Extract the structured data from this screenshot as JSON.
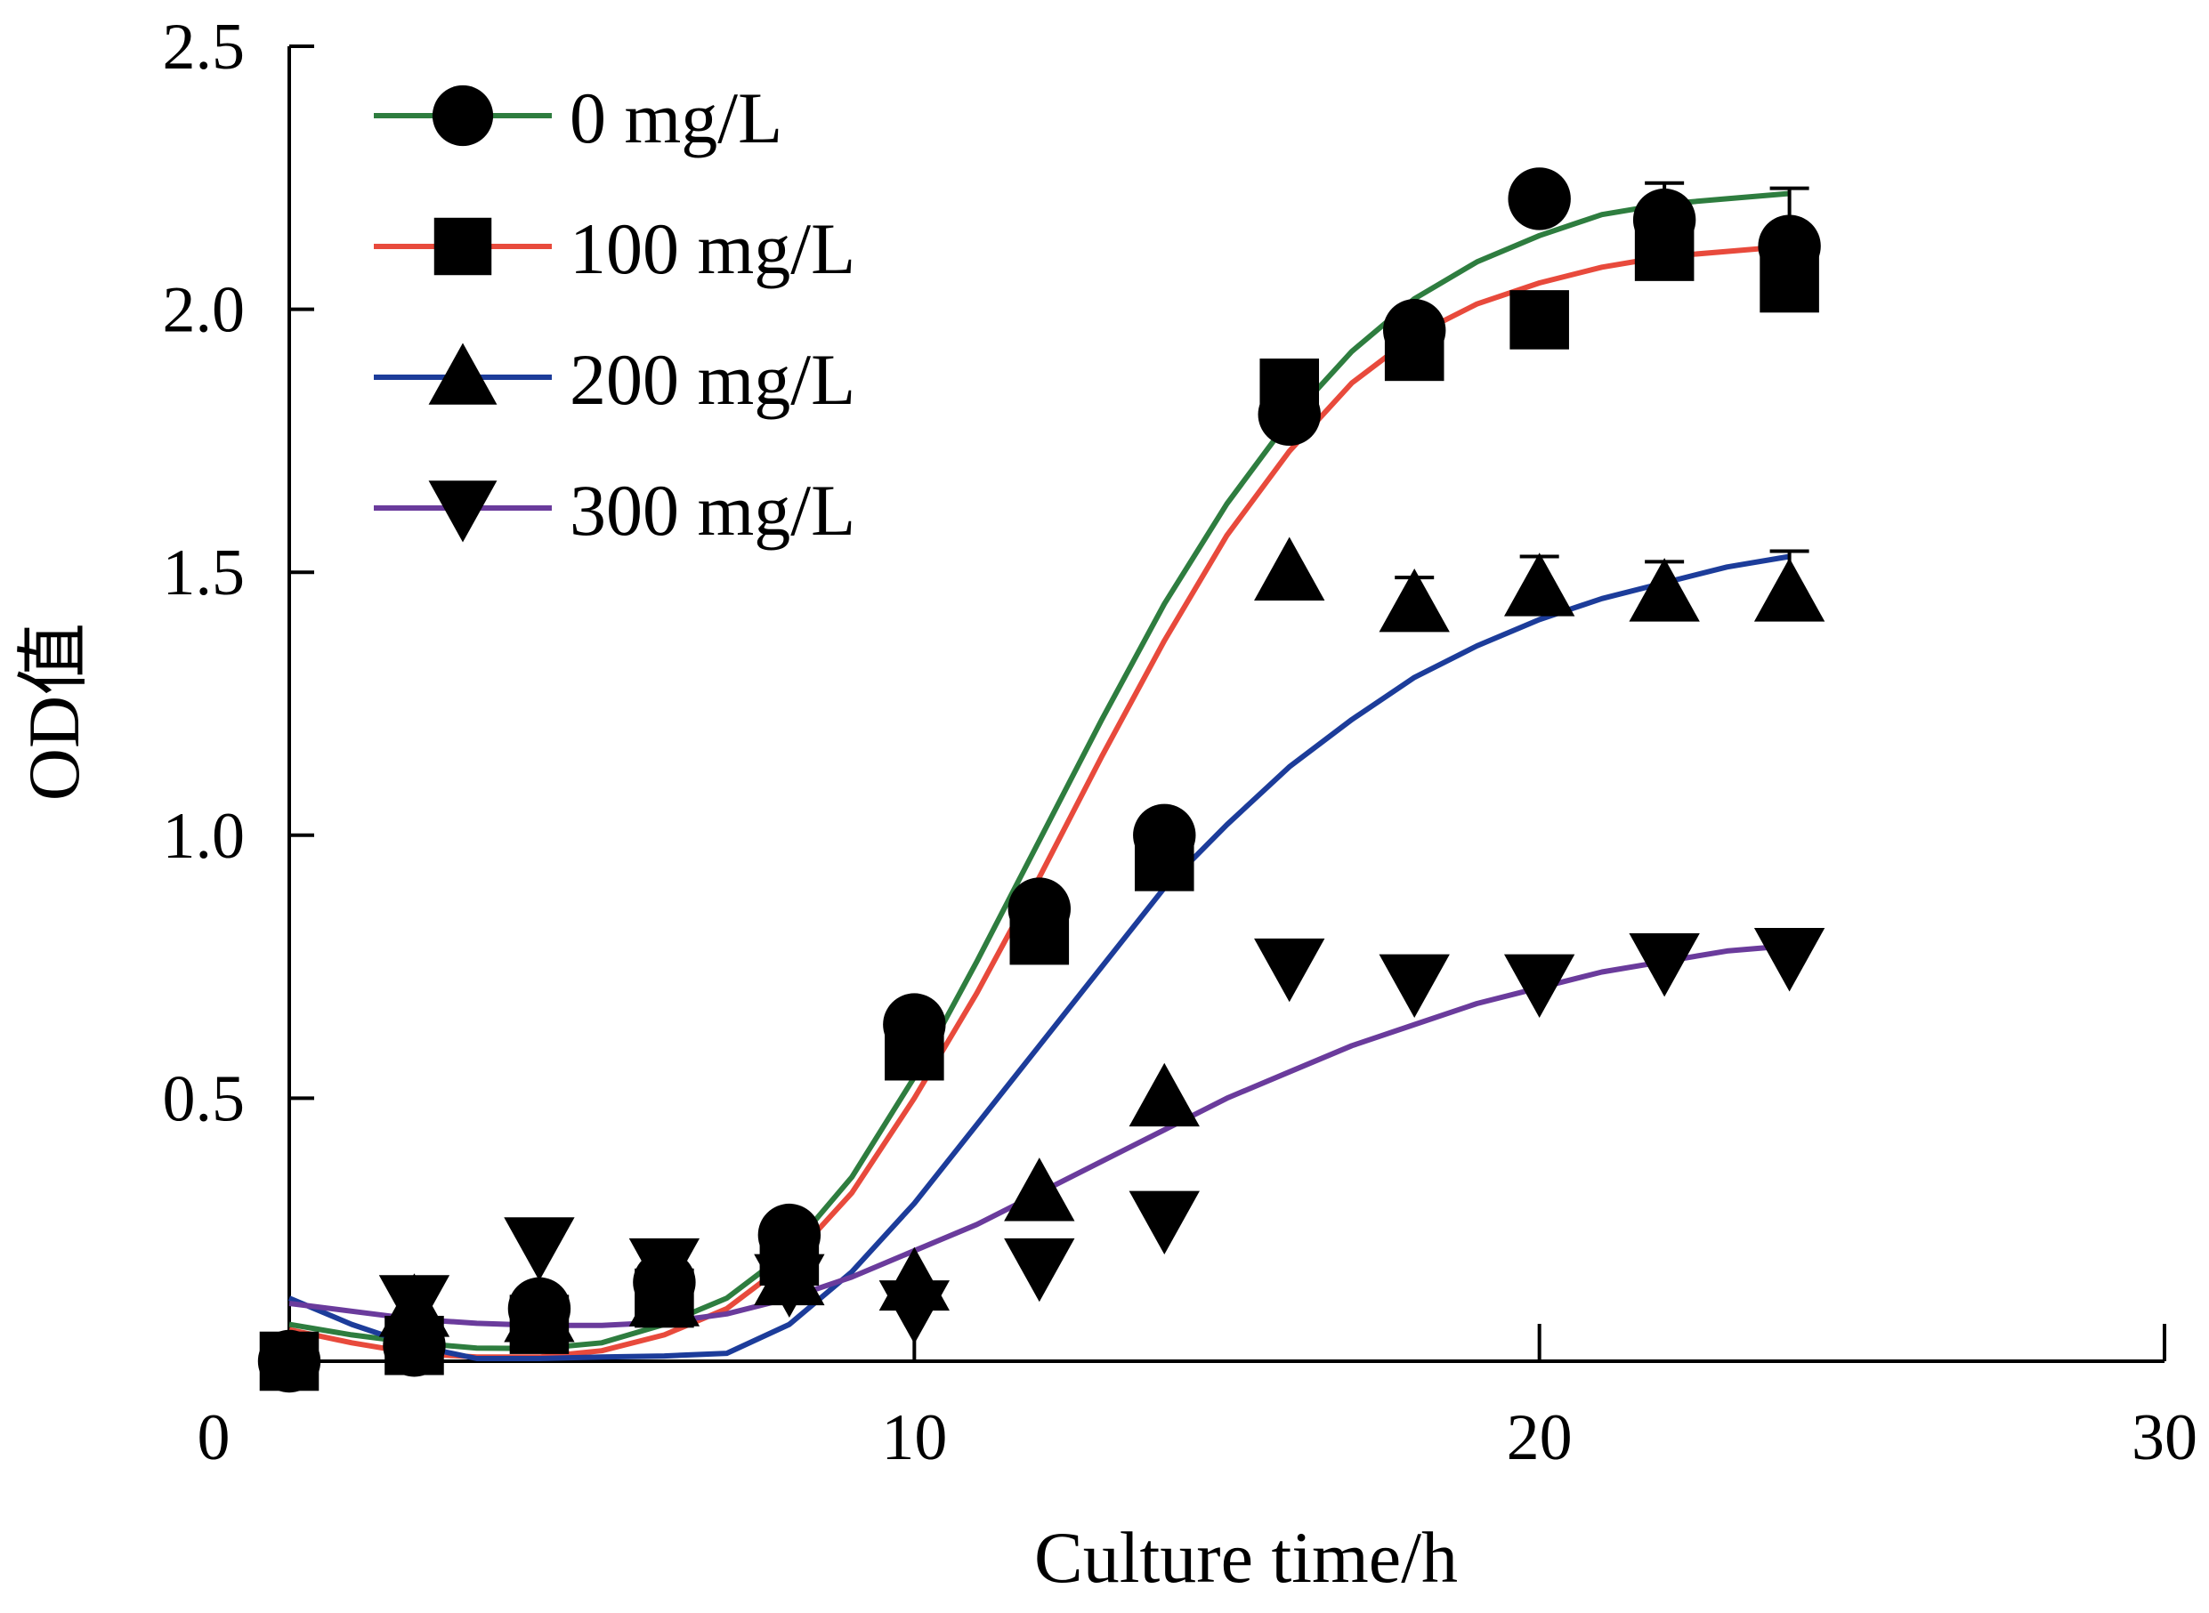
{
  "chart_data": {
    "type": "line",
    "xlabel": "Culture time/h",
    "ylabel": "OD值",
    "xlim": [
      0,
      30
    ],
    "ylim": [
      0,
      2.5
    ],
    "xticks": [
      "0",
      "10",
      "20",
      "30"
    ],
    "yticks": [
      "0.5",
      "1.0",
      "1.5",
      "2.0",
      "2.5"
    ],
    "grid": false,
    "legend_position": "top-left",
    "series": [
      {
        "name": "0 mg/L",
        "marker": "circle",
        "color": "#2e7d3f",
        "points": [
          [
            0,
            0
          ],
          [
            2,
            0.03
          ],
          [
            4,
            0.1
          ],
          [
            6,
            0.15
          ],
          [
            8,
            0.24
          ],
          [
            10,
            0.64
          ],
          [
            12,
            0.86
          ],
          [
            14,
            1.0
          ],
          [
            16,
            1.8
          ],
          [
            18,
            1.96
          ],
          [
            20,
            2.21
          ],
          [
            22,
            2.17
          ],
          [
            24,
            2.12
          ]
        ],
        "error": [
          0,
          0,
          0,
          0,
          0,
          0,
          0,
          0,
          0.04,
          0,
          0.04,
          0.07,
          0.11
        ],
        "fit": [
          [
            0,
            0.07
          ],
          [
            1,
            0.05
          ],
          [
            2,
            0.035
          ],
          [
            3,
            0.025
          ],
          [
            4,
            0.024
          ],
          [
            5,
            0.035
          ],
          [
            6,
            0.07
          ],
          [
            7,
            0.12
          ],
          [
            8,
            0.21
          ],
          [
            9,
            0.35
          ],
          [
            10,
            0.54
          ],
          [
            11,
            0.76
          ],
          [
            12,
            0.99
          ],
          [
            13,
            1.22
          ],
          [
            14,
            1.44
          ],
          [
            15,
            1.63
          ],
          [
            16,
            1.79
          ],
          [
            17,
            1.92
          ],
          [
            18,
            2.02
          ],
          [
            19,
            2.09
          ],
          [
            20,
            2.14
          ],
          [
            21,
            2.18
          ],
          [
            22,
            2.2
          ],
          [
            23,
            2.21
          ],
          [
            24,
            2.22
          ]
        ]
      },
      {
        "name": "100 mg/L",
        "marker": "square",
        "color": "#e84a3c",
        "points": [
          [
            0,
            0
          ],
          [
            2,
            0.03
          ],
          [
            4,
            0.07
          ],
          [
            6,
            0.12
          ],
          [
            8,
            0.2
          ],
          [
            10,
            0.59
          ],
          [
            12,
            0.81
          ],
          [
            14,
            0.95
          ],
          [
            16,
            1.85
          ],
          [
            18,
            1.92
          ],
          [
            20,
            1.98
          ],
          [
            22,
            2.11
          ],
          [
            24,
            2.05
          ]
        ],
        "error": [
          0,
          0,
          0,
          0,
          0,
          0,
          0,
          0,
          0,
          0,
          0,
          0,
          0
        ],
        "fit": [
          [
            0,
            0.06
          ],
          [
            1,
            0.035
          ],
          [
            2,
            0.015
          ],
          [
            3,
            0.008
          ],
          [
            4,
            0.008
          ],
          [
            5,
            0.02
          ],
          [
            6,
            0.05
          ],
          [
            7,
            0.1
          ],
          [
            8,
            0.19
          ],
          [
            9,
            0.32
          ],
          [
            10,
            0.5
          ],
          [
            11,
            0.7
          ],
          [
            12,
            0.92
          ],
          [
            13,
            1.15
          ],
          [
            14,
            1.37
          ],
          [
            15,
            1.57
          ],
          [
            16,
            1.73
          ],
          [
            17,
            1.86
          ],
          [
            18,
            1.95
          ],
          [
            19,
            2.01
          ],
          [
            20,
            2.05
          ],
          [
            21,
            2.08
          ],
          [
            22,
            2.1
          ],
          [
            23,
            2.11
          ],
          [
            24,
            2.12
          ]
        ]
      },
      {
        "name": "200 mg/L",
        "marker": "triangle-up",
        "color": "#1c3c9a",
        "points": [
          [
            2,
            0.1
          ],
          [
            4,
            0.09
          ],
          [
            6,
            0.12
          ],
          [
            8,
            0.16
          ],
          [
            10,
            0.15
          ],
          [
            12,
            0.32
          ],
          [
            14,
            0.5
          ],
          [
            16,
            1.5
          ],
          [
            18,
            1.44
          ],
          [
            20,
            1.47
          ],
          [
            22,
            1.46
          ],
          [
            24,
            1.46
          ]
        ],
        "error": [
          0,
          0,
          0,
          0,
          0,
          0,
          0,
          0,
          0.05,
          0.06,
          0.06,
          0.08
        ],
        "fit": [
          [
            0,
            0.12
          ],
          [
            1,
            0.07
          ],
          [
            2,
            0.03
          ],
          [
            3,
            0.005
          ],
          [
            4,
            0.005
          ],
          [
            5,
            0.008
          ],
          [
            6,
            0.01
          ],
          [
            7,
            0.015
          ],
          [
            8,
            0.07
          ],
          [
            9,
            0.17
          ],
          [
            10,
            0.3
          ],
          [
            11,
            0.45
          ],
          [
            12,
            0.6
          ],
          [
            13,
            0.75
          ],
          [
            14,
            0.9
          ],
          [
            15,
            1.02
          ],
          [
            16,
            1.13
          ],
          [
            17,
            1.22
          ],
          [
            18,
            1.3
          ],
          [
            19,
            1.36
          ],
          [
            20,
            1.41
          ],
          [
            21,
            1.45
          ],
          [
            22,
            1.48
          ],
          [
            23,
            1.51
          ],
          [
            24,
            1.53
          ]
        ]
      },
      {
        "name": "300 mg/L",
        "marker": "triangle-down",
        "color": "#6a3b9c",
        "points": [
          [
            2,
            0.11
          ],
          [
            4,
            0.22
          ],
          [
            6,
            0.18
          ],
          [
            8,
            0.15
          ],
          [
            10,
            0.1
          ],
          [
            12,
            0.18
          ],
          [
            14,
            0.27
          ],
          [
            16,
            0.75
          ],
          [
            18,
            0.72
          ],
          [
            20,
            0.72
          ],
          [
            22,
            0.76
          ],
          [
            24,
            0.77
          ]
        ],
        "error": [
          0,
          0,
          0,
          0,
          0,
          0,
          0,
          0,
          0,
          0,
          0,
          0
        ],
        "fit": [
          [
            0,
            0.11
          ],
          [
            1,
            0.095
          ],
          [
            2,
            0.08
          ],
          [
            3,
            0.072
          ],
          [
            4,
            0.068
          ],
          [
            5,
            0.068
          ],
          [
            6,
            0.074
          ],
          [
            7,
            0.09
          ],
          [
            8,
            0.12
          ],
          [
            9,
            0.16
          ],
          [
            10,
            0.21
          ],
          [
            11,
            0.26
          ],
          [
            12,
            0.32
          ],
          [
            13,
            0.38
          ],
          [
            14,
            0.44
          ],
          [
            15,
            0.5
          ],
          [
            16,
            0.55
          ],
          [
            17,
            0.6
          ],
          [
            18,
            0.64
          ],
          [
            19,
            0.68
          ],
          [
            20,
            0.71
          ],
          [
            21,
            0.74
          ],
          [
            22,
            0.76
          ],
          [
            23,
            0.78
          ],
          [
            24,
            0.79
          ]
        ]
      }
    ]
  }
}
